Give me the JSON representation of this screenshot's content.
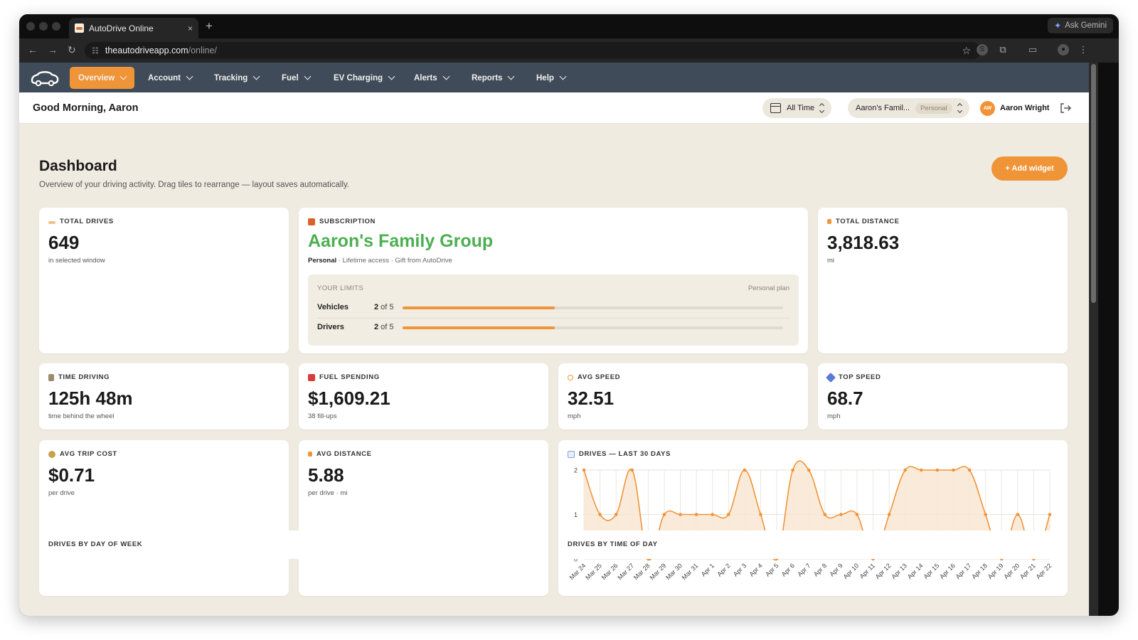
{
  "browser": {
    "tab_title": "AutoDrive Online",
    "tab_close": "×",
    "new_tab": "+",
    "gemini_label": "Ask Gemini",
    "url_host": "theautodriveapp.com",
    "url_path": "/online/",
    "nav_back": "←",
    "nav_forward": "→",
    "nav_reload": "↻"
  },
  "nav": {
    "items": [
      {
        "label": "Overview",
        "active": true
      },
      {
        "label": "Account"
      },
      {
        "label": "Tracking"
      },
      {
        "label": "Fuel"
      },
      {
        "label": "EV Charging"
      },
      {
        "label": "Alerts"
      },
      {
        "label": "Reports"
      },
      {
        "label": "Help"
      }
    ]
  },
  "header": {
    "greeting": "Good Morning, Aaron",
    "time_range": "All Time",
    "group_name": "Aaron's Famil...",
    "group_badge": "Personal",
    "avatar_initials": "AW",
    "user_name": "Aaron Wright"
  },
  "dashboard": {
    "title": "Dashboard",
    "subtitle": "Overview of your driving activity. Drag tiles to rearrange — layout saves automatically.",
    "add_widget": "+ Add widget"
  },
  "tiles": {
    "total_drives": {
      "label": "TOTAL DRIVES",
      "value": "649",
      "note": "in selected window"
    },
    "subscription": {
      "label": "SUBSCRIPTION",
      "name": "Aaron's Family Group",
      "plan": "Personal",
      "meta": " · Lifetime access · Gift from AutoDrive",
      "limits_title": "YOUR LIMITS",
      "limits_plan": "Personal plan",
      "limits": [
        {
          "name": "Vehicles",
          "used": "2",
          "of_text": " of 5",
          "fraction": 0.4
        },
        {
          "name": "Drivers",
          "used": "2",
          "of_text": " of 5",
          "fraction": 0.4
        }
      ]
    },
    "total_distance": {
      "label": "TOTAL DISTANCE",
      "value": "3,818.63",
      "note": "mi"
    },
    "time_driving": {
      "label": "TIME DRIVING",
      "value": "125h 48m",
      "note": "time behind the wheel"
    },
    "fuel_spending": {
      "label": "FUEL SPENDING",
      "value": "$1,609.21",
      "note": "38 fill-ups"
    },
    "avg_speed": {
      "label": "AVG SPEED",
      "value": "32.51",
      "note": "mph"
    },
    "top_speed": {
      "label": "TOP SPEED",
      "value": "68.7",
      "note": "mph"
    },
    "avg_trip_cost": {
      "label": "AVG TRIP COST",
      "value": "$0.71",
      "note": "per drive"
    },
    "avg_distance": {
      "label": "AVG DISTANCE",
      "value": "5.88",
      "note": "per drive · mi"
    },
    "drives_chart": {
      "label": "DRIVES — LAST 30 DAYS"
    },
    "peek_left": {
      "label": "DRIVES BY DAY OF WEEK"
    },
    "peek_right": {
      "label": "DRIVES BY TIME OF DAY"
    }
  },
  "colors": {
    "accent": "#f09438",
    "nav_bg": "#3f4b58",
    "page_bg": "#efebe1",
    "success": "#4caf50"
  },
  "chart_data": {
    "type": "area",
    "title": "DRIVES — LAST 30 DAYS",
    "x": [
      "Mar 24",
      "Mar 25",
      "Mar 26",
      "Mar 27",
      "Mar 28",
      "Mar 29",
      "Mar 30",
      "Mar 31",
      "Apr 1",
      "Apr 2",
      "Apr 3",
      "Apr 4",
      "Apr 5",
      "Apr 6",
      "Apr 7",
      "Apr 8",
      "Apr 9",
      "Apr 10",
      "Apr 11",
      "Apr 12",
      "Apr 13",
      "Apr 14",
      "Apr 15",
      "Apr 16",
      "Apr 17",
      "Apr 18",
      "Apr 19",
      "Apr 20",
      "Apr 21",
      "Apr 22"
    ],
    "series": [
      {
        "values": [
          2,
          1,
          1,
          2,
          0,
          1,
          1,
          1,
          1,
          1,
          2,
          1,
          0,
          2,
          2,
          1,
          1,
          1,
          0,
          1,
          2,
          2,
          2,
          2,
          2,
          1,
          0,
          1,
          0,
          1
        ]
      }
    ],
    "ylim": [
      0,
      2
    ],
    "yticks": [
      0,
      1,
      2
    ],
    "grid": true
  }
}
